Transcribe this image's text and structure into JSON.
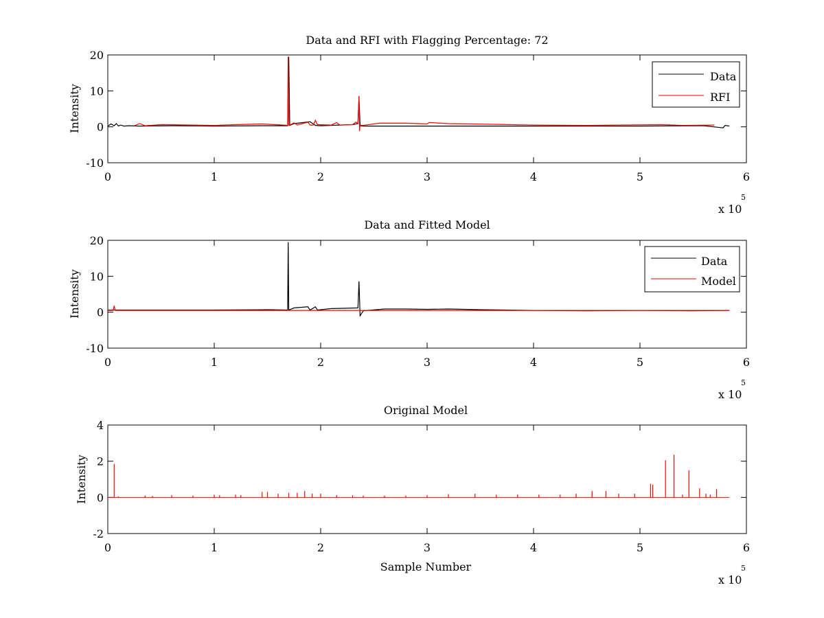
{
  "figure": {
    "background": "#ffffff"
  },
  "chart_data": [
    {
      "type": "line",
      "title": "Data and RFI with Flagging Percentage: 72",
      "xlabel": "",
      "ylabel": "Intensity",
      "xlim": [
        0,
        600000
      ],
      "ylim": [
        -10,
        20
      ],
      "xticks": [
        0,
        1,
        2,
        3,
        4,
        5,
        6
      ],
      "yticks": [
        -10,
        0,
        10,
        20
      ],
      "x_exponent_base": "x 10",
      "x_exponent_power": "5",
      "legend": {
        "placement": "top-right",
        "entries": [
          "Data",
          "RFI"
        ]
      },
      "series": [
        {
          "name": "Data",
          "color": "#000000",
          "x": [
            0,
            3000,
            6000,
            8000,
            10000,
            12000,
            15000,
            20000,
            30000,
            60000,
            100000,
            150000,
            169000,
            170000,
            171000,
            175000,
            190000,
            195000,
            200000,
            230000,
            235000,
            236000,
            237000,
            240000,
            300000,
            400000,
            500000,
            560000,
            575000,
            578000,
            580000,
            584000
          ],
          "y": [
            0.2,
            0.8,
            0.3,
            0.9,
            0.2,
            0.5,
            0.2,
            0.3,
            0.2,
            0.3,
            0.2,
            0.3,
            0.3,
            19.5,
            0.4,
            0.9,
            1.4,
            0.4,
            0.3,
            0.6,
            0.9,
            8.5,
            0.3,
            0.2,
            0.2,
            0.2,
            0.2,
            0.3,
            -0.2,
            -0.3,
            0.4,
            0.2
          ]
        },
        {
          "name": "RFI",
          "color": "#ff0000",
          "x": [
            25000,
            30000,
            35000,
            50000,
            80000,
            100000,
            120000,
            145000,
            165000,
            169000,
            169500,
            170000,
            171000,
            175000,
            178000,
            188000,
            190000,
            193000,
            195000,
            197000,
            210000,
            215000,
            218000,
            230000,
            233000,
            235000,
            236000,
            236500,
            237000,
            240000,
            255000,
            280000,
            300000,
            302000,
            320000,
            340000,
            360000,
            400000,
            450000,
            520000,
            540000,
            570000
          ],
          "y": [
            0.3,
            0.9,
            0.3,
            0.6,
            0.5,
            0.4,
            0.6,
            0.8,
            0.5,
            0.4,
            19.5,
            0.4,
            0.5,
            1.1,
            0.5,
            1.3,
            0.5,
            0.5,
            1.8,
            0.6,
            0.5,
            1.2,
            0.5,
            0.6,
            1.3,
            0.9,
            8.6,
            -1.2,
            0.5,
            0.4,
            1.0,
            1.0,
            0.8,
            1.2,
            0.9,
            0.8,
            0.7,
            0.5,
            0.4,
            0.6,
            0.4,
            0.5
          ]
        }
      ]
    },
    {
      "type": "line",
      "title": "Data and Fitted Model",
      "xlabel": "",
      "ylabel": "Intensity",
      "xlim": [
        0,
        600000
      ],
      "ylim": [
        -10,
        20
      ],
      "xticks": [
        0,
        1,
        2,
        3,
        4,
        5,
        6
      ],
      "yticks": [
        -10,
        0,
        10,
        20
      ],
      "x_exponent_base": "x 10",
      "x_exponent_power": "5",
      "legend": {
        "placement": "top-right",
        "entries": [
          "Data",
          "Model"
        ]
      },
      "series": [
        {
          "name": "Data",
          "color": "#000000",
          "x": [
            0,
            50000,
            100000,
            150000,
            169000,
            169500,
            170000,
            175000,
            188000,
            190000,
            195000,
            197000,
            210000,
            235000,
            236000,
            237000,
            240000,
            260000,
            280000,
            300000,
            320000,
            350000,
            400000,
            450000,
            500000,
            550000,
            584000
          ],
          "y": [
            0.6,
            0.6,
            0.6,
            0.7,
            0.6,
            19.5,
            0.6,
            1.2,
            1.5,
            0.6,
            1.5,
            0.6,
            1.0,
            1.2,
            8.6,
            -1.0,
            0.4,
            0.9,
            0.9,
            0.8,
            0.9,
            0.7,
            0.5,
            0.4,
            0.5,
            0.4,
            0.5
          ]
        },
        {
          "name": "Model",
          "color": "#ff0000",
          "x": [
            0,
            5000,
            6000,
            7000,
            8000,
            10000,
            50000,
            100000,
            150000,
            200000,
            300000,
            400000,
            500000,
            584000
          ],
          "y": [
            0.5,
            0.5,
            1.8,
            0.5,
            0.5,
            0.5,
            0.5,
            0.5,
            0.5,
            0.5,
            0.5,
            0.5,
            0.5,
            0.5
          ]
        }
      ]
    },
    {
      "type": "line",
      "title": "Original Model",
      "xlabel": "Sample Number",
      "ylabel": "Intensity",
      "xlim": [
        0,
        600000
      ],
      "ylim": [
        -2,
        4
      ],
      "xticks": [
        0,
        1,
        2,
        3,
        4,
        5,
        6
      ],
      "yticks": [
        -2,
        0,
        2,
        4
      ],
      "x_exponent_base": "x 10",
      "x_exponent_power": "5",
      "legend": null,
      "series": [
        {
          "name": "",
          "color": "#ff0000",
          "baseline": 0,
          "spikes_x": [
            6000,
            10000,
            35000,
            42000,
            60000,
            80000,
            100000,
            105000,
            120000,
            125000,
            145000,
            150000,
            160000,
            170000,
            178000,
            185000,
            192000,
            200000,
            215000,
            230000,
            240000,
            260000,
            280000,
            300000,
            320000,
            345000,
            365000,
            385000,
            405000,
            425000,
            440000,
            455000,
            468000,
            480000,
            495000,
            510000,
            512000,
            524000,
            532000,
            540000,
            546000,
            556000,
            562000,
            566000,
            572000
          ],
          "spikes_y": [
            1.85,
            0.05,
            0.1,
            0.08,
            0.12,
            0.1,
            0.15,
            0.12,
            0.15,
            0.12,
            0.3,
            0.3,
            0.2,
            0.25,
            0.25,
            0.35,
            0.2,
            0.2,
            0.12,
            0.12,
            0.1,
            0.1,
            0.1,
            0.12,
            0.18,
            0.2,
            0.15,
            0.15,
            0.15,
            0.15,
            0.2,
            0.35,
            0.35,
            0.2,
            0.2,
            0.75,
            0.7,
            2.05,
            2.35,
            0.15,
            1.5,
            0.5,
            0.2,
            0.15,
            0.45
          ]
        }
      ]
    }
  ]
}
